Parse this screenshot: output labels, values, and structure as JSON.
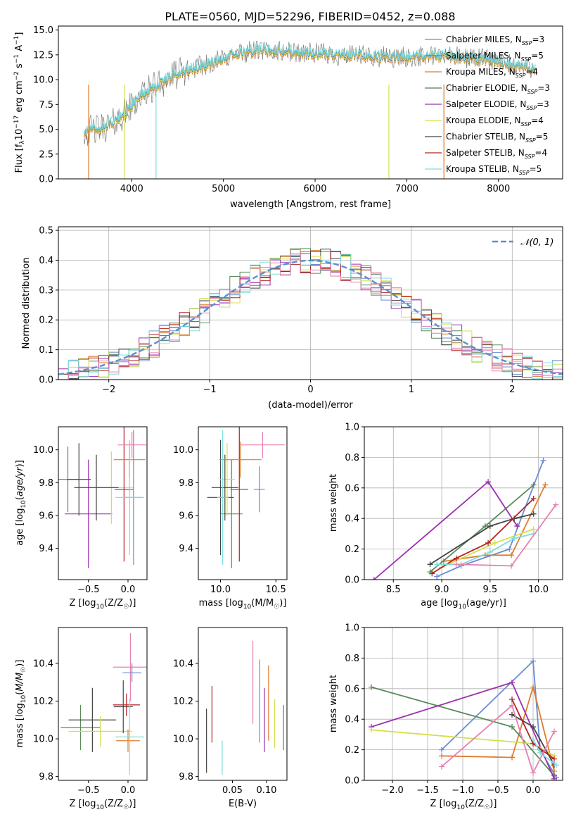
{
  "title": "PLATE=0560, MJD=52296, FIBERID=0452, z=0.088",
  "colors": {
    "models": [
      "#5a9a9a",
      "#4b8bbe",
      "#e07b2a",
      "#4f7f4f",
      "#9b30b0",
      "#d4e04a",
      "#444444",
      "#b22222",
      "#7fdede"
    ],
    "pairs": [
      "#6b8cd6",
      "#e07b2a",
      "#5a8a5a",
      "#9b30b0",
      "#d4e04a",
      "#444444",
      "#b22222",
      "#7fdede",
      "#e87fb0"
    ],
    "normal": "#5b8fd0",
    "spectrum_gray": "#808080",
    "spectrum_cyan": "#7fdede"
  },
  "chart_data": [
    {
      "type": "line",
      "title": "PLATE=0560, MJD=52296, FIBERID=0452, z=0.088",
      "xlabel": "wavelength [Angstrom, rest frame]",
      "ylabel": "Flux [f_λ 10^-17 erg cm^-2 s^-1 A^-1]",
      "xlim": [
        3200,
        8700
      ],
      "ylim": [
        0,
        15.4
      ],
      "xticks": [
        4000,
        5000,
        6000,
        7000,
        8000
      ],
      "yticks": [
        0.0,
        2.5,
        5.0,
        7.5,
        10.0,
        12.5,
        15.0
      ],
      "ytick_labels": [
        "0.0",
        "2.5",
        "5.0",
        "7.5",
        "10.0",
        "12.5",
        "15.0"
      ],
      "legend": [
        {
          "main": "Chabrier MILES, N",
          "sub": "SSP",
          "tail": "=3"
        },
        {
          "main": "Salpeter MILES, N",
          "sub": "SSP",
          "tail": "=5"
        },
        {
          "main": "Kroupa MILES, N",
          "sub": "SSP",
          "tail": "=4"
        },
        {
          "main": "Chabrier ELODIE, N",
          "sub": "SSP",
          "tail": "=3"
        },
        {
          "main": "Salpeter ELODIE, N",
          "sub": "SSP",
          "tail": "=3"
        },
        {
          "main": "Kroupa ELODIE, N",
          "sub": "SSP",
          "tail": "=4"
        },
        {
          "main": "Chabrier STELIB, N",
          "sub": "SSP",
          "tail": "=5"
        },
        {
          "main": "Salpeter STELIB, N",
          "sub": "SSP",
          "tail": "=4"
        },
        {
          "main": "Kroupa STELIB, N",
          "sub": "SSP",
          "tail": "=5"
        }
      ],
      "legend_position": "right",
      "continuum": {
        "x": [
          3500,
          3650,
          3800,
          3950,
          4100,
          4300,
          4500,
          4700,
          4900,
          5100,
          5300,
          5500,
          5700,
          5900,
          6100,
          6300,
          6500,
          6700,
          6900,
          7100,
          7300,
          7500,
          7700,
          7900,
          8100,
          8300
        ],
        "y": [
          4.8,
          5.0,
          5.6,
          6.8,
          8.4,
          9.6,
          10.6,
          11.2,
          11.8,
          12.4,
          12.9,
          12.9,
          12.8,
          12.7,
          12.6,
          12.4,
          12.4,
          12.3,
          12.2,
          12.3,
          12.4,
          12.3,
          12.2,
          12.0,
          11.5,
          11.2
        ]
      }
    },
    {
      "type": "line",
      "xlabel": "(data-model)/error",
      "ylabel": "Normed distribution",
      "xlim": [
        -2.5,
        2.5
      ],
      "ylim": [
        0,
        0.512
      ],
      "xticks": [
        -2,
        -1,
        0,
        1,
        2
      ],
      "xtick_labels": [
        "−2",
        "−1",
        "0",
        "1",
        "2"
      ],
      "yticks": [
        0.0,
        0.1,
        0.2,
        0.3,
        0.4,
        0.5
      ],
      "ytick_labels": [
        "0.0",
        "0.1",
        "0.2",
        "0.3",
        "0.4",
        "0.5"
      ],
      "legend": [
        "𝒩(0, 1)"
      ],
      "legend_position": "top-right",
      "grid": true,
      "bin_width": 0.1
    },
    {
      "type": "scatter",
      "xlabel_main": "Z [log",
      "xlabel_sub": "10",
      "xlabel_tail": "(Z/Z",
      "ylabel": "age [log10(age/yr)]",
      "xlim": [
        -0.88,
        0.24
      ],
      "ylim": [
        9.21,
        10.14
      ],
      "xticks": [
        -0.5,
        0.0
      ],
      "xtick_labels": [
        "−0.5",
        "0.0"
      ],
      "yticks": [
        9.4,
        9.6,
        9.8,
        10.0
      ],
      "ytick_labels": [
        "9.4",
        "9.6",
        "9.8",
        "10.0"
      ],
      "points": [
        {
          "x": -0.5,
          "y": 9.61,
          "xerr": 0.3,
          "yerr": 0.33
        },
        {
          "x": -0.76,
          "y": 9.82,
          "xerr": 0.15,
          "yerr": 0.2
        },
        {
          "x": -0.62,
          "y": 9.82,
          "xerr": 0.15,
          "yerr": 0.22
        },
        {
          "x": -0.21,
          "y": 9.77,
          "xerr": 0.29,
          "yerr": 0.22
        },
        {
          "x": -0.4,
          "y": 9.77,
          "xerr": 0.28,
          "yerr": 0.2
        },
        {
          "x": -0.05,
          "y": 9.76,
          "xerr": 0.12,
          "yerr": 0.44
        },
        {
          "x": 0.02,
          "y": 9.94,
          "xerr": 0.2,
          "yerr": 0.11
        },
        {
          "x": 0.05,
          "y": 10.03,
          "xerr": 0.18,
          "yerr": 0.08
        },
        {
          "x": 0.07,
          "y": 9.71,
          "xerr": 0.13,
          "yerr": 0.41
        },
        {
          "x": 0.02,
          "y": 9.71,
          "xerr": 0.18,
          "yerr": 0.35
        }
      ]
    },
    {
      "type": "scatter",
      "xlabel_main": "mass [log",
      "xlabel_sub": "10",
      "xlabel_tail": "(M/M",
      "xlim": [
        9.8,
        10.6
      ],
      "ylim": [
        9.21,
        10.14
      ],
      "xticks": [
        10.0,
        10.5
      ],
      "xtick_labels": [
        "10.0",
        "10.5"
      ],
      "yticks": [
        9.4,
        9.6,
        9.8,
        10.0
      ],
      "ytick_labels": [
        "9.4",
        "9.6",
        "9.8",
        "10.0"
      ],
      "points": [
        {
          "x": 10.1,
          "y": 9.61,
          "xerr": 0.1,
          "yerr": 0.33
        },
        {
          "x": 10.0,
          "y": 9.71,
          "xerr": 0.12,
          "yerr": 0.35
        },
        {
          "x": 10.06,
          "y": 9.82,
          "xerr": 0.07,
          "yerr": 0.22
        },
        {
          "x": 10.04,
          "y": 9.77,
          "xerr": 0.12,
          "yerr": 0.2
        },
        {
          "x": 10.17,
          "y": 9.76,
          "xerr": 0.08,
          "yerr": 0.44
        },
        {
          "x": 10.18,
          "y": 9.94,
          "xerr": 0.19,
          "yerr": 0.11
        },
        {
          "x": 10.38,
          "y": 10.03,
          "xerr": 0.2,
          "yerr": 0.08
        },
        {
          "x": 10.35,
          "y": 9.76,
          "xerr": 0.05,
          "yerr": 0.14
        },
        {
          "x": 10.02,
          "y": 9.71,
          "xerr": 0.05,
          "yerr": 0.41
        }
      ]
    },
    {
      "type": "line",
      "xlabel_main": "age  [log",
      "xlabel_sub": "10",
      "xlabel_tail": "(age/yr)]",
      "ylabel": "mass weight",
      "xlim": [
        8.2,
        10.25
      ],
      "ylim": [
        0,
        1.0
      ],
      "xticks": [
        8.5,
        9.0,
        9.5,
        10.0
      ],
      "xtick_labels": [
        "8.5",
        "9.0",
        "9.5",
        "10.0"
      ],
      "yticks": [
        0.0,
        0.2,
        0.4,
        0.6,
        0.8,
        1.0
      ],
      "ytick_labels": [
        "0.0",
        "0.2",
        "0.4",
        "0.6",
        "0.8",
        "1.0"
      ],
      "grid": true,
      "series": [
        {
          "x": [
            8.95,
            9.2,
            9.7,
            10.05
          ],
          "y": [
            0.02,
            0.09,
            0.2,
            0.78
          ]
        },
        {
          "x": [
            9.02,
            9.45,
            9.72,
            10.07
          ],
          "y": [
            0.12,
            0.16,
            0.16,
            0.62
          ]
        },
        {
          "x": [
            8.88,
            9.45,
            9.95
          ],
          "y": [
            0.05,
            0.35,
            0.62
          ]
        },
        {
          "x": [
            8.3,
            9.48,
            9.78
          ],
          "y": [
            0.0,
            0.64,
            0.35
          ]
        },
        {
          "x": [
            9.0,
            9.55,
            9.95
          ],
          "y": [
            0.08,
            0.24,
            0.33
          ]
        },
        {
          "x": [
            8.88,
            9.5,
            9.75,
            9.95
          ],
          "y": [
            0.1,
            0.35,
            0.4,
            0.43
          ]
        },
        {
          "x": [
            8.9,
            9.15,
            9.48,
            9.95
          ],
          "y": [
            0.04,
            0.14,
            0.24,
            0.53
          ]
        },
        {
          "x": [
            8.95,
            9.2,
            9.5,
            9.75,
            9.95
          ],
          "y": [
            0.1,
            0.1,
            0.18,
            0.27,
            0.3
          ]
        },
        {
          "x": [
            9.15,
            9.72,
            10.18
          ],
          "y": [
            0.1,
            0.09,
            0.49
          ]
        }
      ]
    },
    {
      "type": "scatter",
      "xlabel_main": "Z [log",
      "xlabel_sub": "10",
      "xlabel_tail": "(Z/Z",
      "ylabel": "mass [log10(M/M☉)]",
      "xlim": [
        -0.88,
        0.24
      ],
      "ylim": [
        9.78,
        10.59
      ],
      "xticks": [
        -0.5,
        0.0
      ],
      "xtick_labels": [
        "−0.5",
        "0.0"
      ],
      "yticks": [
        9.8,
        10.0,
        10.2,
        10.4
      ],
      "ytick_labels": [
        "9.8",
        "10.0",
        "10.2",
        "10.4"
      ],
      "points": [
        {
          "x": -0.6,
          "y": 10.06,
          "xerr": 0.25,
          "yerr": 0.12
        },
        {
          "x": -0.45,
          "y": 10.1,
          "xerr": 0.3,
          "yerr": 0.17
        },
        {
          "x": -0.35,
          "y": 10.04,
          "xerr": 0.4,
          "yerr": 0.08
        },
        {
          "x": -0.06,
          "y": 10.17,
          "xerr": 0.12,
          "yerr": 0.14
        },
        {
          "x": -0.02,
          "y": 10.18,
          "xerr": 0.17,
          "yerr": 0.06
        },
        {
          "x": 0.0,
          "y": 9.99,
          "xerr": 0.15,
          "yerr": 0.06
        },
        {
          "x": 0.03,
          "y": 10.38,
          "xerr": 0.22,
          "yerr": 0.18
        },
        {
          "x": 0.05,
          "y": 10.35,
          "xerr": 0.12,
          "yerr": 0.05
        },
        {
          "x": 0.02,
          "y": 10.01,
          "xerr": 0.18,
          "yerr": 0.2
        }
      ]
    },
    {
      "type": "scatter",
      "xlabel": "E(B-V)",
      "xlim": [
        0.0,
        0.13
      ],
      "ylim": [
        9.78,
        10.59
      ],
      "xticks": [
        0.05,
        0.1
      ],
      "xtick_labels": [
        "0.05",
        "0.10"
      ],
      "yticks": [
        9.8,
        10.0,
        10.2,
        10.4
      ],
      "ytick_labels": [
        "9.8",
        "10.0",
        "10.2",
        "10.4"
      ],
      "points": [
        {
          "x": 0.012,
          "y": 9.99,
          "yerr": 0.17
        },
        {
          "x": 0.02,
          "y": 10.13,
          "yerr": 0.15
        },
        {
          "x": 0.035,
          "y": 9.9,
          "yerr": 0.09
        },
        {
          "x": 0.08,
          "y": 10.3,
          "yerr": 0.22
        },
        {
          "x": 0.09,
          "y": 10.2,
          "yerr": 0.22
        },
        {
          "x": 0.097,
          "y": 10.1,
          "yerr": 0.17
        },
        {
          "x": 0.103,
          "y": 10.19,
          "yerr": 0.2
        },
        {
          "x": 0.112,
          "y": 10.08,
          "yerr": 0.13
        },
        {
          "x": 0.125,
          "y": 10.06,
          "yerr": 0.12
        }
      ]
    },
    {
      "type": "line",
      "xlabel_main": "Z [log",
      "xlabel_sub": "10",
      "xlabel_tail": "(Z/Z",
      "ylabel": "mass weight",
      "xlim": [
        -2.4,
        0.42
      ],
      "ylim": [
        0,
        1.0
      ],
      "xticks": [
        -2.0,
        -1.5,
        -1.0,
        -0.5,
        0.0
      ],
      "xtick_labels": [
        "−2.0",
        "−1.5",
        "−1.0",
        "−0.5",
        "0.0"
      ],
      "yticks": [
        0.0,
        0.2,
        0.4,
        0.6,
        0.8,
        1.0
      ],
      "ytick_labels": [
        "0.0",
        "0.2",
        "0.4",
        "0.6",
        "0.8",
        "1.0"
      ],
      "grid": true,
      "series": [
        {
          "x": [
            -1.3,
            0.0,
            0.1,
            0.33
          ],
          "y": [
            0.2,
            0.78,
            0.2,
            0.02
          ]
        },
        {
          "x": [
            -1.3,
            -0.3,
            0.0,
            0.3
          ],
          "y": [
            0.16,
            0.15,
            0.61,
            0.06
          ]
        },
        {
          "x": [
            -2.3,
            -0.3,
            0.3
          ],
          "y": [
            0.61,
            0.35,
            0.03
          ]
        },
        {
          "x": [
            -2.3,
            -0.3,
            0.3
          ],
          "y": [
            0.35,
            0.64,
            0.01
          ]
        },
        {
          "x": [
            -2.3,
            0.0,
            0.3
          ],
          "y": [
            0.33,
            0.24,
            0.16
          ]
        },
        {
          "x": [
            -0.3,
            0.0,
            0.3
          ],
          "y": [
            0.43,
            0.35,
            0.1
          ]
        },
        {
          "x": [
            -0.3,
            0.0,
            0.3
          ],
          "y": [
            0.53,
            0.24,
            0.14
          ]
        },
        {
          "x": [
            0.0,
            0.1,
            0.33
          ],
          "y": [
            0.27,
            0.18,
            0.1
          ]
        },
        {
          "x": [
            -1.3,
            -0.3,
            0.0,
            0.3
          ],
          "y": [
            0.09,
            0.49,
            0.05,
            0.32
          ]
        }
      ]
    }
  ]
}
